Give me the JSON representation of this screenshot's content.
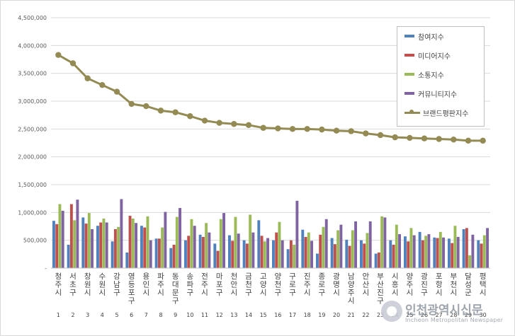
{
  "chart_data": {
    "type": "bar",
    "title": "",
    "xlabel": "",
    "ylabel": "",
    "ylim": [
      0,
      4500000
    ],
    "yticks": [
      "-",
      "500,000",
      "1,000,000",
      "1,500,000",
      "2,000,000",
      "2,500,000",
      "3,000,000",
      "3,500,000",
      "4,000,000",
      "4,500,000"
    ],
    "grid": true,
    "legend_position": "top-right",
    "categories": [
      "청주시",
      "서초구",
      "창원시",
      "수원시",
      "강남구",
      "영등포구",
      "용인시",
      "파주시",
      "동대문구",
      "송파구",
      "전주시",
      "마포구",
      "천안시",
      "금천구",
      "고양시",
      "양천구",
      "구로구",
      "진주시",
      "종로구",
      "광명시",
      "남양주시",
      "안산시",
      "부산진구",
      "시흥시",
      "양주시",
      "광진구",
      "포항시",
      "부천시",
      "달성군",
      "평택시"
    ],
    "ranks": [
      "1",
      "2",
      "3",
      "4",
      "5",
      "6",
      "7",
      "8",
      "9",
      "10",
      "11",
      "12",
      "13",
      "14",
      "15",
      "16",
      "17",
      "18",
      "19",
      "20",
      "21",
      "22",
      "23",
      "24",
      "25",
      "26",
      "27",
      "28",
      "29",
      "30"
    ],
    "series": [
      {
        "name": "참여지수",
        "kind": "bar",
        "color": "#4f81bd",
        "values": [
          850000,
          420000,
          910000,
          760000,
          480000,
          280000,
          760000,
          530000,
          360000,
          500000,
          600000,
          440000,
          590000,
          500000,
          860000,
          500000,
          340000,
          690000,
          260000,
          540000,
          510000,
          500000,
          260000,
          500000,
          570000,
          650000,
          550000,
          530000,
          700000,
          500000
        ]
      },
      {
        "name": "미디어지수",
        "kind": "bar",
        "color": "#c0504d",
        "values": [
          790000,
          1150000,
          800000,
          820000,
          700000,
          940000,
          730000,
          530000,
          420000,
          580000,
          560000,
          310000,
          490000,
          440000,
          580000,
          640000,
          500000,
          560000,
          600000,
          430000,
          400000,
          440000,
          280000,
          420000,
          480000,
          500000,
          540000,
          450000,
          720000,
          440000
        ]
      },
      {
        "name": "소통지수",
        "kind": "bar",
        "color": "#9bbb59",
        "values": [
          1150000,
          860000,
          990000,
          890000,
          740000,
          890000,
          930000,
          730000,
          920000,
          880000,
          810000,
          880000,
          920000,
          960000,
          480000,
          830000,
          420000,
          640000,
          740000,
          680000,
          680000,
          630000,
          930000,
          780000,
          720000,
          580000,
          650000,
          760000,
          230000,
          590000
        ]
      },
      {
        "name": "커뮤니티지수",
        "kind": "bar",
        "color": "#8064a2",
        "values": [
          1030000,
          1230000,
          700000,
          820000,
          1240000,
          810000,
          500000,
          1010000,
          1080000,
          760000,
          640000,
          990000,
          620000,
          640000,
          540000,
          500000,
          1210000,
          490000,
          880000,
          780000,
          840000,
          840000,
          910000,
          610000,
          590000,
          610000,
          550000,
          560000,
          600000,
          720000
        ]
      },
      {
        "name": "브랜드평판지수",
        "kind": "line",
        "color": "#948a54",
        "values": [
          3830000,
          3680000,
          3410000,
          3290000,
          3170000,
          2950000,
          2910000,
          2830000,
          2800000,
          2730000,
          2650000,
          2610000,
          2590000,
          2570000,
          2520000,
          2510000,
          2500000,
          2500000,
          2490000,
          2470000,
          2460000,
          2420000,
          2390000,
          2350000,
          2340000,
          2330000,
          2320000,
          2310000,
          2290000,
          2290000
        ]
      }
    ]
  },
  "watermark": {
    "title": "인천광역시신문",
    "subtitle": "Incheon Metropolitan Newspaper"
  }
}
